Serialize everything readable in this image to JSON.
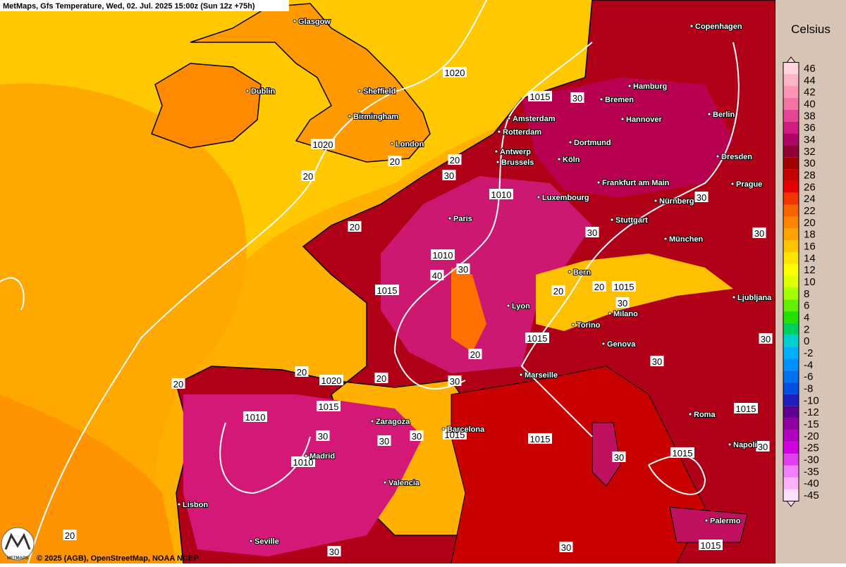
{
  "header": {
    "title": "MetMaps, Gfs Temperature, Wed, 02. Jul. 2025 15:00z (Sun 12z +75h)"
  },
  "legend": {
    "title": "Celsius",
    "items": [
      {
        "label": "46",
        "color": "#ffd4dc"
      },
      {
        "label": "44",
        "color": "#ffb4c4"
      },
      {
        "label": "42",
        "color": "#ff94b4"
      },
      {
        "label": "40",
        "color": "#f472a4"
      },
      {
        "label": "38",
        "color": "#e44494"
      },
      {
        "label": "36",
        "color": "#d01c80"
      },
      {
        "label": "34",
        "color": "#b00464"
      },
      {
        "label": "32",
        "color": "#900034"
      },
      {
        "label": "30",
        "color": "#a00000"
      },
      {
        "label": "28",
        "color": "#c40000"
      },
      {
        "label": "26",
        "color": "#e40000"
      },
      {
        "label": "24",
        "color": "#f43400"
      },
      {
        "label": "22",
        "color": "#f86400"
      },
      {
        "label": "20",
        "color": "#ff8400"
      },
      {
        "label": "18",
        "color": "#ffa400"
      },
      {
        "label": "16",
        "color": "#ffc400"
      },
      {
        "label": "14",
        "color": "#ffe400"
      },
      {
        "label": "12",
        "color": "#ffff00"
      },
      {
        "label": "10",
        "color": "#e0ff00"
      },
      {
        "label": "8",
        "color": "#a4ff00"
      },
      {
        "label": "6",
        "color": "#64f000"
      },
      {
        "label": "4",
        "color": "#24e000"
      },
      {
        "label": "2",
        "color": "#00d064"
      },
      {
        "label": "0",
        "color": "#00d0d0"
      },
      {
        "label": "-2",
        "color": "#00b0ff"
      },
      {
        "label": "-4",
        "color": "#0090ff"
      },
      {
        "label": "-6",
        "color": "#0070f0"
      },
      {
        "label": "-8",
        "color": "#0050e0"
      },
      {
        "label": "-10",
        "color": "#2020c0"
      },
      {
        "label": "-12",
        "color": "#600090"
      },
      {
        "label": "-15",
        "color": "#9000a0"
      },
      {
        "label": "-20",
        "color": "#b000c0"
      },
      {
        "label": "-25",
        "color": "#d000e0"
      },
      {
        "label": "-30",
        "color": "#e040f0"
      },
      {
        "label": "-35",
        "color": "#f080ff"
      },
      {
        "label": "-40",
        "color": "#ffb0ff"
      },
      {
        "label": "-45",
        "color": "#ffe0ff"
      }
    ]
  },
  "cities": [
    "Glasgow",
    "Dublin",
    "Sheffield",
    "Birmingham",
    "London",
    "Copenhagen",
    "Hamburg",
    "Bremen",
    "Berlin",
    "Hannover",
    "Amsterdam",
    "Rotterdam",
    "Dortmund",
    "Antwerp",
    "Brussels",
    "Köln",
    "Dresden",
    "Frankfurt am Main",
    "Prague",
    "Luxembourg",
    "Nürnberg",
    "Paris",
    "Stuttgart",
    "München",
    "Bern",
    "Lyon",
    "Milano",
    "Ljubljana",
    "Torino",
    "Genova",
    "Marseille",
    "Zaragoza",
    "Barcelona",
    "Roma",
    "Madrid",
    "Napoli",
    "Valencia",
    "Lisbon",
    "Seville",
    "Palermo"
  ],
  "contour_labels": [
    "1020",
    "1015",
    "30",
    "1020",
    "20",
    "20",
    "30",
    "20",
    "1010",
    "30",
    "20",
    "30",
    "30",
    "1010",
    "40",
    "30",
    "1015",
    "20",
    "20",
    "1015",
    "30",
    "1015",
    "20",
    "30",
    "20",
    "1020",
    "20",
    "30",
    "30",
    "20",
    "1015",
    "1010",
    "30",
    "30",
    "30",
    "1015",
    "1015",
    "1015",
    "1015",
    "1010",
    "30",
    "30",
    "20",
    "30",
    "1015",
    "30"
  ],
  "footer": {
    "brand": "METMAPS",
    "copyright": "© 2025 (AGB), OpenStreetMap, NOAA NCEP"
  }
}
